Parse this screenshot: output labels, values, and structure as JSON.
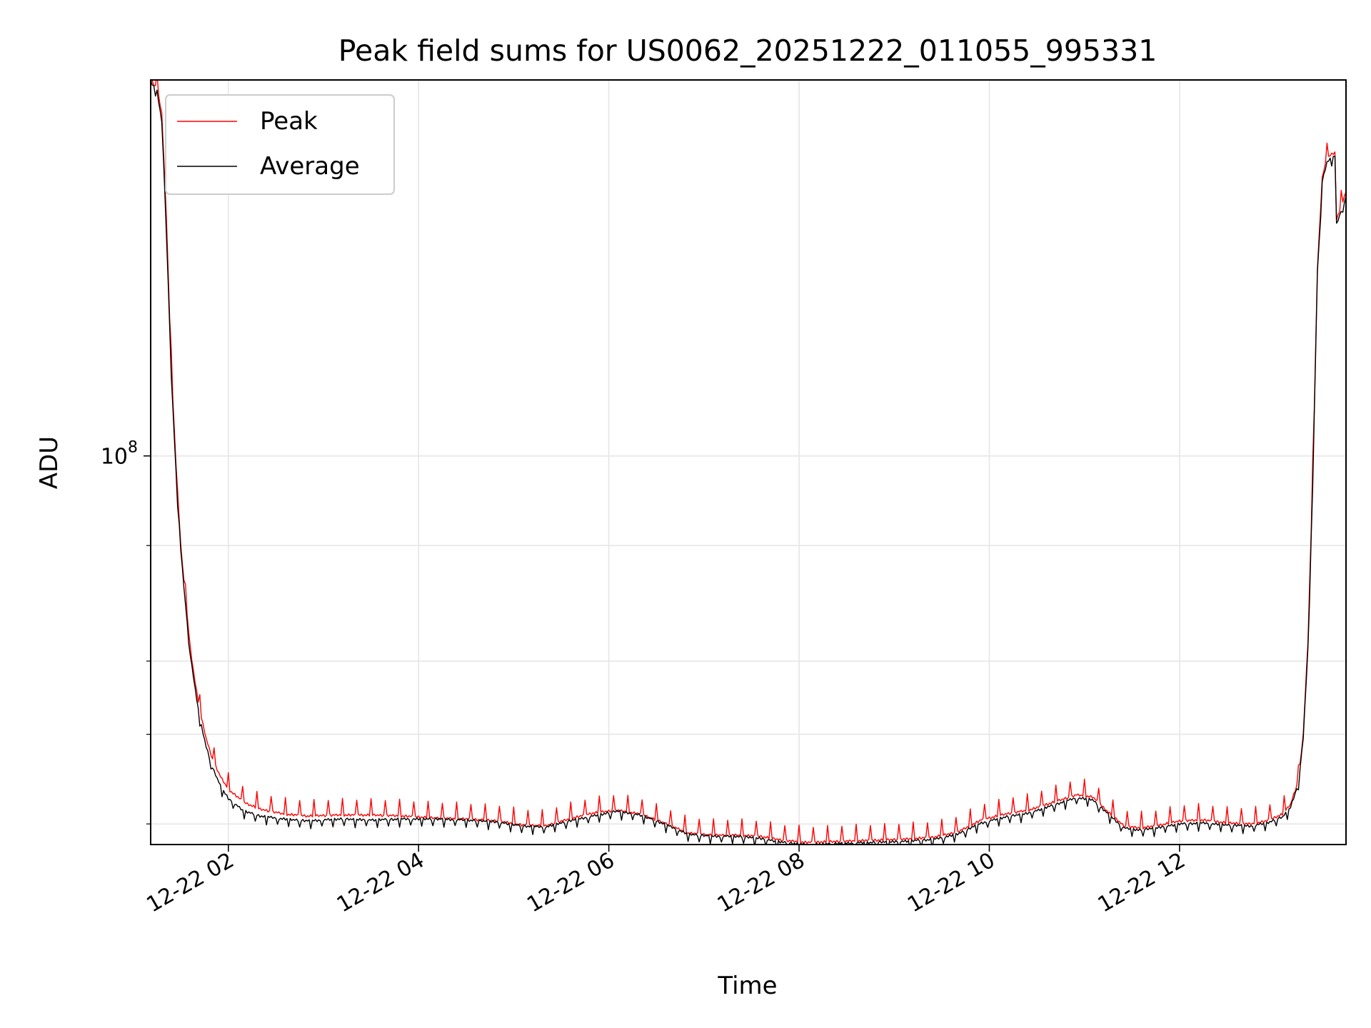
{
  "chart_data": {
    "type": "line",
    "title": "Peak field sums for US0062_20251222_011055_995331",
    "xlabel": "Time",
    "ylabel": "ADU",
    "y_scale": "log",
    "xlim": [
      "2025-12-22 01:11",
      "2025-12-22 13:45"
    ],
    "ylim": [
      38000000,
      255000000
    ],
    "x_ticks": [
      {
        "x": "2025-12-22 02:00",
        "label": "12-22 02"
      },
      {
        "x": "2025-12-22 04:00",
        "label": "12-22 04"
      },
      {
        "x": "2025-12-22 06:00",
        "label": "12-22 06"
      },
      {
        "x": "2025-12-22 08:00",
        "label": "12-22 08"
      },
      {
        "x": "2025-12-22 10:00",
        "label": "12-22 10"
      },
      {
        "x": "2025-12-22 12:00",
        "label": "12-22 12"
      }
    ],
    "y_major_ticks": [
      {
        "y": 100000000,
        "base": "10",
        "exp": "8"
      }
    ],
    "y_minor_ticks": [
      40000000,
      50000000,
      60000000,
      80000000
    ],
    "grid": true,
    "legend_position": "top-left",
    "series": [
      {
        "name": "Peak",
        "color": "#ff0000",
        "x": [
          "2025-12-22 01:11",
          "2025-12-22 01:15",
          "2025-12-22 01:18",
          "2025-12-22 01:21",
          "2025-12-22 01:24",
          "2025-12-22 01:27",
          "2025-12-22 01:30",
          "2025-12-22 01:33",
          "2025-12-22 01:36",
          "2025-12-22 01:39",
          "2025-12-22 01:42",
          "2025-12-22 01:46",
          "2025-12-22 01:50",
          "2025-12-22 01:55",
          "2025-12-22 02:00",
          "2025-12-22 02:10",
          "2025-12-22 02:20",
          "2025-12-22 02:35",
          "2025-12-22 02:50",
          "2025-12-22 03:10",
          "2025-12-22 03:30",
          "2025-12-22 03:50",
          "2025-12-22 04:10",
          "2025-12-22 04:30",
          "2025-12-22 04:50",
          "2025-12-22 05:05",
          "2025-12-22 05:20",
          "2025-12-22 05:35",
          "2025-12-22 05:50",
          "2025-12-22 06:05",
          "2025-12-22 06:20",
          "2025-12-22 06:35",
          "2025-12-22 06:50",
          "2025-12-22 07:05",
          "2025-12-22 07:20",
          "2025-12-22 07:35",
          "2025-12-22 07:50",
          "2025-12-22 08:05",
          "2025-12-22 08:25",
          "2025-12-22 08:45",
          "2025-12-22 09:05",
          "2025-12-22 09:25",
          "2025-12-22 09:40",
          "2025-12-22 09:55",
          "2025-12-22 10:10",
          "2025-12-22 10:25",
          "2025-12-22 10:40",
          "2025-12-22 10:55",
          "2025-12-22 11:05",
          "2025-12-22 11:15",
          "2025-12-22 11:25",
          "2025-12-22 11:35",
          "2025-12-22 11:45",
          "2025-12-22 12:00",
          "2025-12-22 12:15",
          "2025-12-22 12:30",
          "2025-12-22 12:45",
          "2025-12-22 12:55",
          "2025-12-22 13:05",
          "2025-12-22 13:10",
          "2025-12-22 13:15",
          "2025-12-22 13:18",
          "2025-12-22 13:21",
          "2025-12-22 13:24",
          "2025-12-22 13:27",
          "2025-12-22 13:30",
          "2025-12-22 13:33",
          "2025-12-22 13:36",
          "2025-12-22 13:38",
          "2025-12-22 13:39",
          "2025-12-22 13:42",
          "2025-12-22 13:45"
        ],
        "y": [
          255000000,
          250000000,
          235000000,
          180000000,
          125000000,
          98000000,
          80000000,
          70000000,
          62000000,
          57000000,
          53000000,
          49500000,
          47000000,
          45000000,
          43600000,
          42200000,
          41500000,
          41000000,
          40800000,
          40900000,
          40900000,
          40800000,
          40600000,
          40500000,
          40300000,
          39900000,
          39800000,
          40500000,
          41100000,
          41400000,
          41000000,
          40100000,
          39100000,
          38900000,
          38900000,
          38800000,
          38400000,
          38200000,
          38300000,
          38400000,
          38500000,
          38700000,
          39200000,
          40400000,
          41000000,
          41400000,
          42200000,
          43000000,
          42800000,
          41200000,
          39800000,
          39600000,
          39800000,
          40300000,
          40400000,
          40100000,
          40000000,
          40300000,
          41000000,
          42000000,
          44600000,
          50000000,
          63000000,
          95000000,
          160000000,
          200000000,
          210000000,
          212000000,
          213000000,
          180000000,
          186000000,
          193000000
        ]
      },
      {
        "name": "Average",
        "color": "#000000",
        "x": [
          "2025-12-22 01:11",
          "2025-12-22 01:15",
          "2025-12-22 01:18",
          "2025-12-22 01:21",
          "2025-12-22 01:24",
          "2025-12-22 01:27",
          "2025-12-22 01:30",
          "2025-12-22 01:33",
          "2025-12-22 01:36",
          "2025-12-22 01:39",
          "2025-12-22 01:42",
          "2025-12-22 01:46",
          "2025-12-22 01:50",
          "2025-12-22 01:55",
          "2025-12-22 02:00",
          "2025-12-22 02:10",
          "2025-12-22 02:20",
          "2025-12-22 02:35",
          "2025-12-22 02:50",
          "2025-12-22 03:10",
          "2025-12-22 03:30",
          "2025-12-22 03:50",
          "2025-12-22 04:10",
          "2025-12-22 04:30",
          "2025-12-22 04:50",
          "2025-12-22 05:05",
          "2025-12-22 05:20",
          "2025-12-22 05:35",
          "2025-12-22 05:50",
          "2025-12-22 06:05",
          "2025-12-22 06:20",
          "2025-12-22 06:35",
          "2025-12-22 06:50",
          "2025-12-22 07:05",
          "2025-12-22 07:20",
          "2025-12-22 07:35",
          "2025-12-22 07:50",
          "2025-12-22 08:05",
          "2025-12-22 08:25",
          "2025-12-22 08:45",
          "2025-12-22 09:05",
          "2025-12-22 09:25",
          "2025-12-22 09:40",
          "2025-12-22 09:55",
          "2025-12-22 10:10",
          "2025-12-22 10:25",
          "2025-12-22 10:40",
          "2025-12-22 10:55",
          "2025-12-22 11:05",
          "2025-12-22 11:15",
          "2025-12-22 11:25",
          "2025-12-22 11:35",
          "2025-12-22 11:45",
          "2025-12-22 12:00",
          "2025-12-22 12:15",
          "2025-12-22 12:30",
          "2025-12-22 12:45",
          "2025-12-22 12:55",
          "2025-12-22 13:05",
          "2025-12-22 13:10",
          "2025-12-22 13:15",
          "2025-12-22 13:18",
          "2025-12-22 13:21",
          "2025-12-22 13:24",
          "2025-12-22 13:27",
          "2025-12-22 13:30",
          "2025-12-22 13:33",
          "2025-12-22 13:36",
          "2025-12-22 13:38",
          "2025-12-22 13:39",
          "2025-12-22 13:42",
          "2025-12-22 13:45"
        ],
        "y": [
          254000000,
          248000000,
          230000000,
          175000000,
          122000000,
          96000000,
          79000000,
          69000000,
          61000000,
          56000000,
          52000000,
          48500000,
          46000000,
          44000000,
          42600000,
          41300000,
          40800000,
          40500000,
          40300000,
          40500000,
          40400000,
          40500000,
          40500000,
          40400000,
          40200000,
          39800000,
          39700000,
          40300000,
          40800000,
          41300000,
          40900000,
          40000000,
          39000000,
          38800000,
          38800000,
          38600000,
          38200000,
          38000000,
          38100000,
          38200000,
          38300000,
          38500000,
          39000000,
          40100000,
          40700000,
          41100000,
          41900000,
          42700000,
          42500000,
          41000000,
          39600000,
          39400000,
          39600000,
          40000000,
          40100000,
          39900000,
          39800000,
          40100000,
          40700000,
          41700000,
          44200000,
          49500000,
          62000000,
          93000000,
          158000000,
          198000000,
          208000000,
          210000000,
          211000000,
          178000000,
          184000000,
          191000000
        ]
      }
    ]
  }
}
